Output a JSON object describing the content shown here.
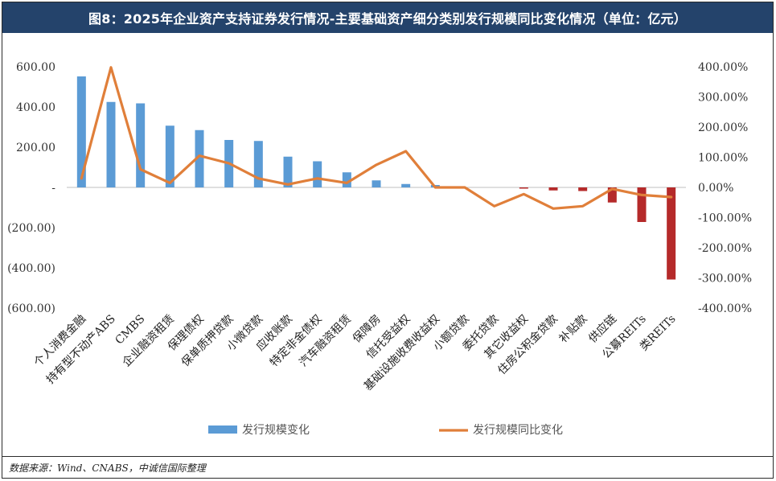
{
  "title": "图8：2025年企业资产支持证券发行情况-主要基础资产细分类别发行规模同比变化情况（单位：亿元）",
  "source": "数据来源：Wind、CNABS，中诚信国际整理",
  "colors": {
    "title_bg": "#24436b",
    "bar_positive": "#5b9bd5",
    "bar_negative": "#b52a2a",
    "line": "#e07f3a"
  },
  "chart_data": {
    "type": "bar",
    "title": "图8：2025年企业资产支持证券发行情况-主要基础资产细分类别发行规模同比变化情况（单位：亿元）",
    "categories": [
      "个人消费金融",
      "持有型不动产ABS",
      "CMBS",
      "企业融资租赁",
      "保理债权",
      "保单质押贷款",
      "小微贷款",
      "应收账款",
      "特定非金债权",
      "汽车融资租赁",
      "保障房",
      "信托受益权",
      "基础设施收费收益权",
      "小额贷款",
      "委托贷款",
      "其它收益权",
      "住房公积金贷款",
      "补贴款",
      "供应链",
      "公募REITs",
      "类REITs"
    ],
    "y_left": {
      "ylim": [
        -600,
        600
      ],
      "ticks": [
        600,
        400,
        200,
        0,
        -200,
        -400,
        -600
      ],
      "tick_labels": [
        "600.00",
        "400.00",
        "200.00",
        "-",
        "(200.00)",
        "(400.00)",
        "(600.00)"
      ]
    },
    "y_right": {
      "ylim": [
        -400,
        400
      ],
      "ticks": [
        400,
        300,
        200,
        100,
        0,
        -100,
        -200,
        -300,
        -400
      ],
      "tick_labels": [
        "400.00%",
        "300.00%",
        "200.00%",
        "100.00%",
        "0.00%",
        "-100.00%",
        "-200.00%",
        "-300.00%",
        "-400.00%"
      ]
    },
    "series": [
      {
        "name": "发行规模变化",
        "type": "bar",
        "axis": "left",
        "values": [
          552,
          425,
          418,
          307,
          285,
          236,
          231,
          153,
          130,
          75,
          35,
          17,
          12,
          0,
          0,
          -5,
          -15,
          -18,
          -75,
          -172,
          -458
        ]
      },
      {
        "name": "发行规模同比变化",
        "type": "line",
        "axis": "right",
        "values": [
          30,
          398,
          60,
          15,
          105,
          80,
          30,
          10,
          30,
          15,
          75,
          120,
          0,
          0,
          -62,
          -22,
          -70,
          -62,
          -5,
          -25,
          -32
        ]
      }
    ],
    "legend_position": "bottom",
    "grid": false
  }
}
